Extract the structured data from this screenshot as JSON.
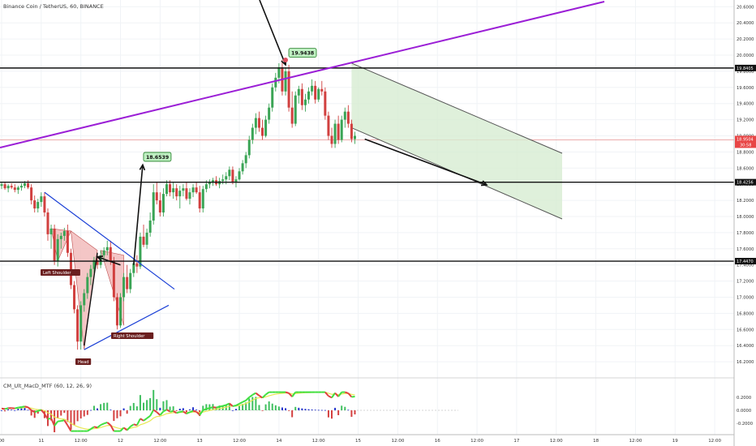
{
  "header": {
    "symbol_title": "Binance Coin / TetherUS, 60, BINANCE"
  },
  "colors": {
    "up": "#3aa455",
    "down": "#d1403f",
    "hline": "#111111",
    "trend": "#9b1fd6",
    "wedge": "#1a3fd6",
    "channel_fill": "#d7ecd2",
    "channel_line": "#555555",
    "hs_fill": "#f2bcbc",
    "label_bg": "#6b1f1f",
    "bubble_fill": "#bff0c2",
    "bubble_border": "#1e7b22"
  },
  "chart_data": {
    "type": "candlestick",
    "price_axis": {
      "range": [
        16.0,
        20.8
      ],
      "ticks": [
        "20.6000",
        "20.4000",
        "20.2000",
        "20.0000",
        "19.8000",
        "19.6000",
        "19.4000",
        "19.2000",
        "19.0000",
        "18.8000",
        "18.6000",
        "18.4000",
        "18.2000",
        "18.0000",
        "17.8000",
        "17.6000",
        "17.4000",
        "17.2000",
        "17.0000",
        "16.8000",
        "16.6000",
        "16.4000",
        "16.2000",
        "16.0000"
      ]
    },
    "time_axis": {
      "ticks": [
        {
          "label": "00",
          "i": 0
        },
        {
          "label": "11",
          "i": 12
        },
        {
          "label": "12:00",
          "i": 24
        },
        {
          "label": "12",
          "i": 36
        },
        {
          "label": "12:00",
          "i": 48
        },
        {
          "label": "13",
          "i": 60
        },
        {
          "label": "12:00",
          "i": 72
        },
        {
          "label": "14",
          "i": 84
        },
        {
          "label": "12:00",
          "i": 96
        },
        {
          "label": "15",
          "i": 108
        },
        {
          "label": "12:00",
          "i": 120
        },
        {
          "label": "16",
          "i": 132
        },
        {
          "label": "12:00",
          "i": 144
        },
        {
          "label": "17",
          "i": 156
        },
        {
          "label": "12:00",
          "i": 168
        },
        {
          "label": "18",
          "i": 180
        },
        {
          "label": "12:00",
          "i": 192
        },
        {
          "label": "19",
          "i": 204
        },
        {
          "label": "12:00",
          "i": 216
        }
      ]
    },
    "candles": [
      [
        18.38,
        18.42,
        18.34,
        18.4
      ],
      [
        18.4,
        18.43,
        18.33,
        18.35
      ],
      [
        18.35,
        18.4,
        18.3,
        18.38
      ],
      [
        18.38,
        18.41,
        18.34,
        18.36
      ],
      [
        18.36,
        18.4,
        18.3,
        18.33
      ],
      [
        18.33,
        18.38,
        18.28,
        18.36
      ],
      [
        18.36,
        18.41,
        18.32,
        18.38
      ],
      [
        18.38,
        18.44,
        18.35,
        18.41
      ],
      [
        18.41,
        18.45,
        18.34,
        18.36
      ],
      [
        18.36,
        18.4,
        18.15,
        18.2
      ],
      [
        18.2,
        18.26,
        18.05,
        18.1
      ],
      [
        18.1,
        18.22,
        18.05,
        18.18
      ],
      [
        18.18,
        18.3,
        18.12,
        18.25
      ],
      [
        18.25,
        18.3,
        18.0,
        18.05
      ],
      [
        18.05,
        18.1,
        17.7,
        17.78
      ],
      [
        17.78,
        17.9,
        17.6,
        17.85
      ],
      [
        17.85,
        17.9,
        17.4,
        17.45
      ],
      [
        17.45,
        17.78,
        17.38,
        17.72
      ],
      [
        17.72,
        17.8,
        17.6,
        17.76
      ],
      [
        17.76,
        17.86,
        17.7,
        17.82
      ],
      [
        17.82,
        17.9,
        17.5,
        17.55
      ],
      [
        17.55,
        17.6,
        17.1,
        17.15
      ],
      [
        17.15,
        17.2,
        16.8,
        16.85
      ],
      [
        16.85,
        16.9,
        16.35,
        16.45
      ],
      [
        16.45,
        16.95,
        16.35,
        16.9
      ],
      [
        16.9,
        17.1,
        16.82,
        17.05
      ],
      [
        17.05,
        17.3,
        16.98,
        17.25
      ],
      [
        17.25,
        17.4,
        17.15,
        17.35
      ],
      [
        17.35,
        17.5,
        17.3,
        17.46
      ],
      [
        17.46,
        17.55,
        17.35,
        17.4
      ],
      [
        17.4,
        17.58,
        17.36,
        17.52
      ],
      [
        17.52,
        17.62,
        17.48,
        17.58
      ],
      [
        17.58,
        17.7,
        17.52,
        17.62
      ],
      [
        17.62,
        17.7,
        17.4,
        17.45
      ],
      [
        17.45,
        17.5,
        16.95,
        17.0
      ],
      [
        17.0,
        17.05,
        16.6,
        16.65
      ],
      [
        16.65,
        17.05,
        16.62,
        17.0
      ],
      [
        17.0,
        17.3,
        16.95,
        17.25
      ],
      [
        17.25,
        17.4,
        17.05,
        17.1
      ],
      [
        17.1,
        17.35,
        17.05,
        17.3
      ],
      [
        17.3,
        17.48,
        17.25,
        17.42
      ],
      [
        17.42,
        17.52,
        17.3,
        17.38
      ],
      [
        17.38,
        17.8,
        17.35,
        17.75
      ],
      [
        17.75,
        17.9,
        17.62,
        17.65
      ],
      [
        17.65,
        17.85,
        17.6,
        17.8
      ],
      [
        17.8,
        18.05,
        17.75,
        17.95
      ],
      [
        17.95,
        18.4,
        17.9,
        18.3
      ],
      [
        18.3,
        18.42,
        18.15,
        18.2
      ],
      [
        18.2,
        18.3,
        18.0,
        18.05
      ],
      [
        18.05,
        18.35,
        18.0,
        18.28
      ],
      [
        18.28,
        18.45,
        18.25,
        18.4
      ],
      [
        18.4,
        18.45,
        18.25,
        18.3
      ],
      [
        18.3,
        18.42,
        18.22,
        18.35
      ],
      [
        18.35,
        18.4,
        18.2,
        18.25
      ],
      [
        18.25,
        18.38,
        18.1,
        18.32
      ],
      [
        18.32,
        18.4,
        18.25,
        18.35
      ],
      [
        18.35,
        18.42,
        18.2,
        18.22
      ],
      [
        18.22,
        18.35,
        18.15,
        18.3
      ],
      [
        18.3,
        18.4,
        18.24,
        18.36
      ],
      [
        18.36,
        18.42,
        18.28,
        18.3
      ],
      [
        18.3,
        18.38,
        18.05,
        18.1
      ],
      [
        18.1,
        18.38,
        18.05,
        18.34
      ],
      [
        18.34,
        18.45,
        18.3,
        18.4
      ],
      [
        18.4,
        18.46,
        18.35,
        18.42
      ],
      [
        18.42,
        18.48,
        18.38,
        18.45
      ],
      [
        18.45,
        18.5,
        18.38,
        18.4
      ],
      [
        18.4,
        18.48,
        18.35,
        18.44
      ],
      [
        18.44,
        18.52,
        18.4,
        18.46
      ],
      [
        18.46,
        18.55,
        18.4,
        18.5
      ],
      [
        18.5,
        18.62,
        18.45,
        18.58
      ],
      [
        18.58,
        18.62,
        18.4,
        18.42
      ],
      [
        18.42,
        18.5,
        18.36,
        18.46
      ],
      [
        18.46,
        18.6,
        18.44,
        18.56
      ],
      [
        18.56,
        18.7,
        18.52,
        18.66
      ],
      [
        18.66,
        18.8,
        18.6,
        18.76
      ],
      [
        18.76,
        19.0,
        18.72,
        18.95
      ],
      [
        18.95,
        19.15,
        18.9,
        19.1
      ],
      [
        19.1,
        19.28,
        19.02,
        19.22
      ],
      [
        19.22,
        19.3,
        19.05,
        19.1
      ],
      [
        19.1,
        19.2,
        18.95,
        19.0
      ],
      [
        19.0,
        19.25,
        18.98,
        19.2
      ],
      [
        19.2,
        19.4,
        19.15,
        19.35
      ],
      [
        19.35,
        19.65,
        19.3,
        19.6
      ],
      [
        19.6,
        19.78,
        19.55,
        19.72
      ],
      [
        19.72,
        19.9,
        19.65,
        19.85
      ],
      [
        19.85,
        19.94,
        19.5,
        19.55
      ],
      [
        19.55,
        19.85,
        19.5,
        19.8
      ],
      [
        19.8,
        19.88,
        19.3,
        19.35
      ],
      [
        19.35,
        19.55,
        19.1,
        19.15
      ],
      [
        19.15,
        19.55,
        19.12,
        19.5
      ],
      [
        19.5,
        19.62,
        19.4,
        19.58
      ],
      [
        19.58,
        19.65,
        19.32,
        19.38
      ],
      [
        19.38,
        19.52,
        19.3,
        19.45
      ],
      [
        19.45,
        19.6,
        19.4,
        19.55
      ],
      [
        19.55,
        19.7,
        19.5,
        19.62
      ],
      [
        19.62,
        19.68,
        19.4,
        19.45
      ],
      [
        19.45,
        19.6,
        19.42,
        19.58
      ],
      [
        19.58,
        19.68,
        19.5,
        19.55
      ],
      [
        19.55,
        19.6,
        19.2,
        19.25
      ],
      [
        19.25,
        19.3,
        18.95,
        19.0
      ],
      [
        19.0,
        19.1,
        18.85,
        18.9
      ],
      [
        18.9,
        19.2,
        18.85,
        19.15
      ],
      [
        19.15,
        19.25,
        18.9,
        18.95
      ],
      [
        18.95,
        19.25,
        18.92,
        19.2
      ],
      [
        19.2,
        19.35,
        19.1,
        19.3
      ],
      [
        19.3,
        19.38,
        19.1,
        19.15
      ],
      [
        19.15,
        19.2,
        18.92,
        18.96
      ],
      [
        18.96,
        19.05,
        18.9,
        19.0
      ]
    ],
    "price_lines": [
      {
        "price": 19.8405,
        "label": "19.8405"
      },
      {
        "price": 18.4256,
        "label": "18.4256"
      },
      {
        "price": 17.447,
        "label": "17.4470"
      }
    ],
    "current_price": {
      "price": 18.9504,
      "label": "18.9504",
      "countdown": "30:58"
    },
    "callouts": [
      {
        "label": "19.9438",
        "price": 19.9438,
        "i": 86
      },
      {
        "label": "18.6539",
        "price": 18.6539,
        "i": 42
      }
    ],
    "pattern_labels": {
      "left": "Left Shoulder",
      "head": "Head",
      "right": "Right Shoulder"
    },
    "indicator": {
      "title": "CM_Ult_MacD_MTF (60, 12, 26, 9)",
      "ticks": [
        "0.2000",
        "0.0000",
        "-0.2000"
      ],
      "range": [
        -0.35,
        0.32
      ]
    }
  }
}
